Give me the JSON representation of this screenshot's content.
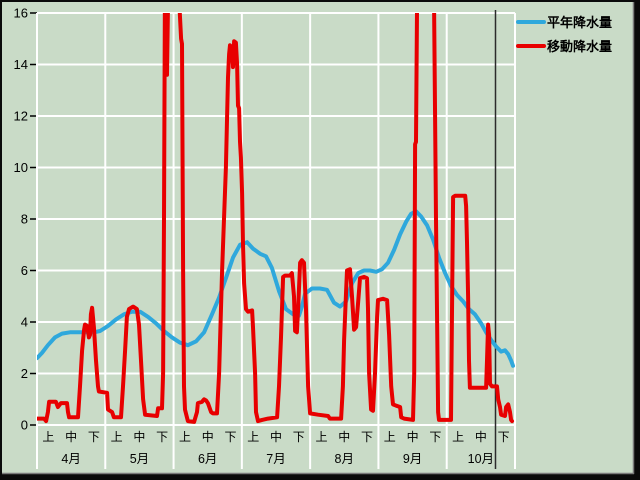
{
  "legend": {
    "items": [
      {
        "label": "平年降水量",
        "color": "#2FA8DC"
      },
      {
        "label": "移動降水量",
        "color": "#E80000"
      }
    ]
  },
  "colors": {
    "background": "#C9DBC7",
    "gridline": "#FFFFFF",
    "frame": "#0A0A0A",
    "bevel": "#7A7A7A",
    "plot_right_border": "#2B2B2B",
    "text": "#000000",
    "series_normal": "#2FA8DC",
    "series_moving": "#E80000"
  },
  "chart_data": {
    "type": "line",
    "title": "",
    "x_unit": "ten-day period (旬) index, 3 per month, 0 = start of 4月上",
    "y_axis": {
      "range": [
        0,
        16
      ],
      "ticks": [
        0,
        2,
        4,
        6,
        8,
        10,
        12,
        14,
        16
      ]
    },
    "x_axis": {
      "months": [
        "4月",
        "5月",
        "6月",
        "7月",
        "8月",
        "9月",
        "10月"
      ],
      "periods": [
        "上",
        "中",
        "下"
      ]
    },
    "grid": true,
    "legend_position": "top-right",
    "clip_above_max": true,
    "series": [
      {
        "name": "平年降水量",
        "color": "#2FA8DC",
        "width": 4,
        "points": [
          [
            0,
            2.6
          ],
          [
            0.22,
            2.8
          ],
          [
            0.48,
            3.1
          ],
          [
            0.79,
            3.4
          ],
          [
            1.1,
            3.55
          ],
          [
            1.45,
            3.6
          ],
          [
            1.8,
            3.6
          ],
          [
            2.15,
            3.6
          ],
          [
            2.5,
            3.6
          ],
          [
            2.77,
            3.65
          ],
          [
            3.12,
            3.85
          ],
          [
            3.47,
            4.1
          ],
          [
            3.82,
            4.3
          ],
          [
            4.17,
            4.4
          ],
          [
            4.53,
            4.4
          ],
          [
            4.88,
            4.2
          ],
          [
            5.23,
            3.95
          ],
          [
            5.58,
            3.65
          ],
          [
            5.93,
            3.4
          ],
          [
            6.28,
            3.2
          ],
          [
            6.63,
            3.1
          ],
          [
            6.99,
            3.25
          ],
          [
            7.34,
            3.6
          ],
          [
            7.69,
            4.3
          ],
          [
            8.0,
            4.95
          ],
          [
            8.3,
            5.7
          ],
          [
            8.61,
            6.5
          ],
          [
            8.92,
            7.0
          ],
          [
            9.23,
            7.1
          ],
          [
            9.49,
            6.85
          ],
          [
            9.8,
            6.65
          ],
          [
            10.06,
            6.55
          ],
          [
            10.32,
            6.1
          ],
          [
            10.63,
            5.2
          ],
          [
            10.94,
            4.5
          ],
          [
            11.25,
            4.3
          ],
          [
            11.51,
            4.25
          ],
          [
            11.64,
            4.6
          ],
          [
            11.78,
            5.1
          ],
          [
            12.08,
            5.3
          ],
          [
            12.43,
            5.3
          ],
          [
            12.74,
            5.25
          ],
          [
            13.05,
            4.75
          ],
          [
            13.31,
            4.6
          ],
          [
            13.58,
            4.8
          ],
          [
            13.84,
            5.5
          ],
          [
            14.11,
            5.9
          ],
          [
            14.37,
            6.0
          ],
          [
            14.63,
            6.0
          ],
          [
            14.9,
            5.95
          ],
          [
            15.16,
            6.05
          ],
          [
            15.42,
            6.3
          ],
          [
            15.69,
            6.8
          ],
          [
            15.95,
            7.4
          ],
          [
            16.22,
            7.9
          ],
          [
            16.43,
            8.2
          ],
          [
            16.65,
            8.3
          ],
          [
            16.87,
            8.1
          ],
          [
            17.14,
            7.75
          ],
          [
            17.4,
            7.2
          ],
          [
            17.66,
            6.5
          ],
          [
            17.93,
            5.9
          ],
          [
            18.19,
            5.4
          ],
          [
            18.45,
            5.05
          ],
          [
            18.72,
            4.8
          ],
          [
            18.98,
            4.5
          ],
          [
            19.24,
            4.3
          ],
          [
            19.51,
            3.95
          ],
          [
            19.73,
            3.6
          ],
          [
            19.95,
            3.3
          ],
          [
            20.17,
            3.05
          ],
          [
            20.39,
            2.85
          ],
          [
            20.56,
            2.9
          ],
          [
            20.7,
            2.75
          ],
          [
            20.83,
            2.5
          ],
          [
            20.91,
            2.3
          ]
        ]
      },
      {
        "name": "移動降水量",
        "color": "#E80000",
        "width": 4,
        "points": [
          [
            0,
            0.25
          ],
          [
            0.31,
            0.25
          ],
          [
            0.4,
            0.15
          ],
          [
            0.48,
            0.5
          ],
          [
            0.53,
            0.9
          ],
          [
            0.83,
            0.9
          ],
          [
            0.92,
            0.7
          ],
          [
            1.05,
            0.85
          ],
          [
            1.32,
            0.85
          ],
          [
            1.36,
            0.5
          ],
          [
            1.41,
            0.3
          ],
          [
            1.8,
            0.3
          ],
          [
            1.89,
            1.5
          ],
          [
            1.98,
            2.9
          ],
          [
            2.07,
            3.7
          ],
          [
            2.11,
            3.9
          ],
          [
            2.2,
            3.85
          ],
          [
            2.28,
            3.4
          ],
          [
            2.33,
            3.5
          ],
          [
            2.37,
            4.3
          ],
          [
            2.42,
            4.55
          ],
          [
            2.5,
            3.8
          ],
          [
            2.59,
            2.5
          ],
          [
            2.68,
            1.5
          ],
          [
            2.72,
            1.3
          ],
          [
            3.08,
            1.25
          ],
          [
            3.12,
            0.6
          ],
          [
            3.3,
            0.5
          ],
          [
            3.38,
            0.3
          ],
          [
            3.69,
            0.3
          ],
          [
            3.78,
            1.5
          ],
          [
            3.87,
            2.9
          ],
          [
            3.95,
            4.2
          ],
          [
            4.04,
            4.5
          ],
          [
            4.22,
            4.6
          ],
          [
            4.39,
            4.5
          ],
          [
            4.48,
            3.9
          ],
          [
            4.57,
            2.5
          ],
          [
            4.66,
            1.0
          ],
          [
            4.75,
            0.4
          ],
          [
            5.27,
            0.35
          ],
          [
            5.32,
            0.65
          ],
          [
            5.49,
            0.65
          ],
          [
            5.54,
            2.0
          ],
          [
            5.58,
            8.0
          ],
          [
            5.62,
            16.6
          ],
          [
            5.67,
            13.6
          ],
          [
            5.71,
            13.6
          ],
          [
            5.76,
            16.6
          ],
          [
            5.98,
            18.0
          ],
          [
            6.24,
            16.6
          ],
          [
            6.33,
            15.0
          ],
          [
            6.37,
            14.8
          ],
          [
            6.42,
            6.0
          ],
          [
            6.46,
            1.5
          ],
          [
            6.5,
            0.6
          ],
          [
            6.63,
            0.15
          ],
          [
            6.9,
            0.12
          ],
          [
            7.03,
            0.5
          ],
          [
            7.07,
            0.85
          ],
          [
            7.25,
            0.9
          ],
          [
            7.34,
            1.0
          ],
          [
            7.43,
            0.95
          ],
          [
            7.51,
            0.85
          ],
          [
            7.65,
            0.5
          ],
          [
            7.73,
            0.45
          ],
          [
            7.91,
            0.45
          ],
          [
            8.0,
            2.0
          ],
          [
            8.13,
            6.0
          ],
          [
            8.3,
            10.0
          ],
          [
            8.39,
            13.5
          ],
          [
            8.44,
            14.4
          ],
          [
            8.48,
            14.75
          ],
          [
            8.57,
            14.6
          ],
          [
            8.61,
            13.9
          ],
          [
            8.66,
            14.9
          ],
          [
            8.74,
            14.85
          ],
          [
            8.79,
            14.0
          ],
          [
            8.83,
            12.4
          ],
          [
            8.88,
            12.3
          ],
          [
            8.92,
            11.0
          ],
          [
            8.96,
            10.4
          ],
          [
            9.01,
            9.0
          ],
          [
            9.05,
            7.0
          ],
          [
            9.1,
            5.5
          ],
          [
            9.18,
            4.5
          ],
          [
            9.27,
            4.4
          ],
          [
            9.45,
            4.45
          ],
          [
            9.49,
            3.8
          ],
          [
            9.58,
            2.0
          ],
          [
            9.62,
            0.5
          ],
          [
            9.71,
            0.15
          ],
          [
            9.89,
            0.2
          ],
          [
            10.15,
            0.25
          ],
          [
            10.55,
            0.3
          ],
          [
            10.63,
            1.5
          ],
          [
            10.72,
            3.4
          ],
          [
            10.81,
            5.75
          ],
          [
            10.9,
            5.8
          ],
          [
            11.12,
            5.8
          ],
          [
            11.2,
            5.9
          ],
          [
            11.29,
            5.0
          ],
          [
            11.34,
            3.65
          ],
          [
            11.42,
            3.6
          ],
          [
            11.47,
            4.5
          ],
          [
            11.56,
            6.3
          ],
          [
            11.64,
            6.4
          ],
          [
            11.73,
            6.3
          ],
          [
            11.82,
            4.5
          ],
          [
            11.91,
            1.5
          ],
          [
            12.0,
            0.45
          ],
          [
            12.35,
            0.4
          ],
          [
            12.79,
            0.35
          ],
          [
            12.87,
            0.25
          ],
          [
            13.36,
            0.25
          ],
          [
            13.44,
            1.5
          ],
          [
            13.49,
            3.3
          ],
          [
            13.58,
            5.2
          ],
          [
            13.62,
            6.0
          ],
          [
            13.75,
            6.05
          ],
          [
            13.84,
            5.0
          ],
          [
            13.93,
            3.7
          ],
          [
            14.02,
            3.8
          ],
          [
            14.11,
            4.8
          ],
          [
            14.19,
            5.7
          ],
          [
            14.37,
            5.75
          ],
          [
            14.5,
            5.7
          ],
          [
            14.54,
            4.5
          ],
          [
            14.59,
            2.0
          ],
          [
            14.68,
            0.6
          ],
          [
            14.76,
            0.55
          ],
          [
            14.85,
            2.0
          ],
          [
            14.94,
            4.2
          ],
          [
            14.98,
            4.85
          ],
          [
            15.2,
            4.9
          ],
          [
            15.38,
            4.85
          ],
          [
            15.47,
            3.5
          ],
          [
            15.56,
            1.5
          ],
          [
            15.64,
            0.8
          ],
          [
            15.78,
            0.75
          ],
          [
            15.95,
            0.7
          ],
          [
            16.0,
            0.3
          ],
          [
            16.13,
            0.25
          ],
          [
            16.52,
            0.2
          ],
          [
            16.57,
            2.0
          ],
          [
            16.61,
            10.9
          ],
          [
            16.65,
            11.0
          ],
          [
            16.7,
            16.6
          ],
          [
            17.07,
            18.0
          ],
          [
            17.44,
            16.6
          ],
          [
            17.53,
            8.0
          ],
          [
            17.62,
            0.5
          ],
          [
            17.66,
            0.2
          ],
          [
            18.19,
            0.2
          ],
          [
            18.23,
            4.0
          ],
          [
            18.28,
            8.85
          ],
          [
            18.37,
            8.9
          ],
          [
            18.81,
            8.9
          ],
          [
            18.85,
            8.5
          ],
          [
            18.89,
            7.1
          ],
          [
            18.94,
            5.0
          ],
          [
            18.98,
            2.5
          ],
          [
            19.02,
            1.45
          ],
          [
            19.38,
            1.45
          ],
          [
            19.73,
            1.45
          ],
          [
            19.77,
            2.5
          ],
          [
            19.82,
            3.9
          ],
          [
            19.86,
            3.5
          ],
          [
            19.9,
            1.6
          ],
          [
            19.99,
            1.5
          ],
          [
            20.21,
            1.5
          ],
          [
            20.26,
            1.0
          ],
          [
            20.34,
            0.7
          ],
          [
            20.39,
            0.4
          ],
          [
            20.56,
            0.35
          ],
          [
            20.61,
            0.7
          ],
          [
            20.7,
            0.8
          ],
          [
            20.78,
            0.5
          ],
          [
            20.83,
            0.2
          ],
          [
            20.87,
            0.15
          ]
        ]
      }
    ]
  }
}
